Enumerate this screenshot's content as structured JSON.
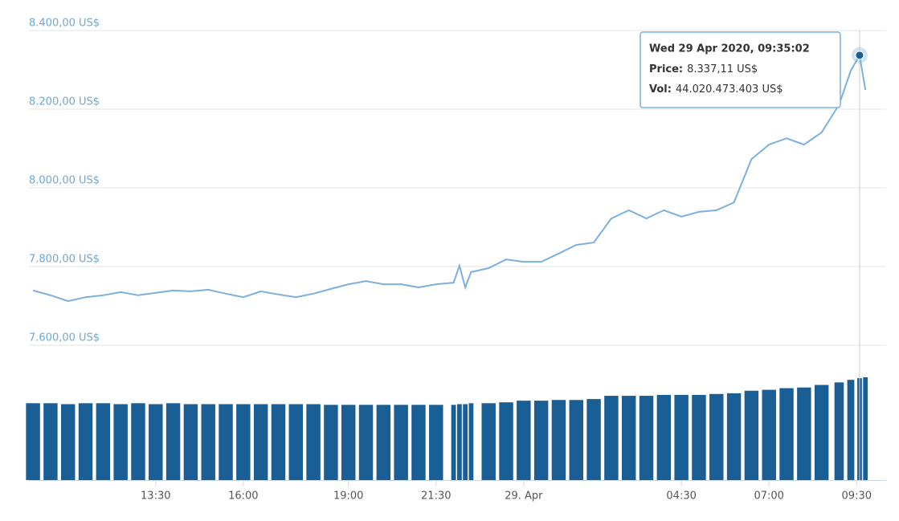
{
  "chart_data": {
    "type": "line",
    "x": [
      "2020-04-28T10:00",
      "2020-04-28T10:30",
      "2020-04-28T11:00",
      "2020-04-28T11:30",
      "2020-04-28T12:00",
      "2020-04-28T12:30",
      "2020-04-28T13:00",
      "2020-04-28T13:30",
      "2020-04-28T14:00",
      "2020-04-28T14:30",
      "2020-04-28T15:00",
      "2020-04-28T15:30",
      "2020-04-28T16:00",
      "2020-04-28T16:30",
      "2020-04-28T17:00",
      "2020-04-28T17:30",
      "2020-04-28T18:00",
      "2020-04-28T18:30",
      "2020-04-28T19:00",
      "2020-04-28T19:30",
      "2020-04-28T20:00",
      "2020-04-28T20:30",
      "2020-04-28T21:00",
      "2020-04-28T21:30",
      "2020-04-28T22:00",
      "2020-04-28T22:10",
      "2020-04-28T22:20",
      "2020-04-28T22:30",
      "2020-04-28T23:00",
      "2020-04-28T23:30",
      "2020-04-29T00:00",
      "2020-04-29T00:30",
      "2020-04-29T01:00",
      "2020-04-29T01:30",
      "2020-04-29T02:00",
      "2020-04-29T02:30",
      "2020-04-29T03:00",
      "2020-04-29T03:30",
      "2020-04-29T04:00",
      "2020-04-29T04:30",
      "2020-04-29T05:00",
      "2020-04-29T05:30",
      "2020-04-29T06:00",
      "2020-04-29T06:30",
      "2020-04-29T07:00",
      "2020-04-29T07:30",
      "2020-04-29T08:00",
      "2020-04-29T08:30",
      "2020-04-29T09:00",
      "2020-04-29T09:20",
      "2020-04-29T09:35:02",
      "2020-04-29T09:45"
    ],
    "series": [
      {
        "name": "Price",
        "color": "#7cb0dc",
        "values": [
          7739,
          7727,
          7712,
          7722,
          7727,
          7735,
          7727,
          7733,
          7739,
          7737,
          7741,
          7731,
          7722,
          7737,
          7729,
          7722,
          7731,
          7743,
          7755,
          7763,
          7755,
          7755,
          7747,
          7755,
          7759,
          7802,
          7747,
          7786,
          7796,
          7818,
          7812,
          7812,
          7833,
          7855,
          7861,
          7922,
          7943,
          7922,
          7943,
          7927,
          7939,
          7943,
          7963,
          8073,
          8110,
          8126,
          8110,
          8141,
          8212,
          8298,
          8337.11,
          8249
        ]
      },
      {
        "name": "Vol",
        "color": "#1a5e96",
        "values": [
          33200000000,
          33200000000,
          32800000000,
          33200000000,
          33200000000,
          32800000000,
          33200000000,
          32800000000,
          33200000000,
          32800000000,
          32800000000,
          32800000000,
          32800000000,
          32800000000,
          32800000000,
          32800000000,
          32800000000,
          32500000000,
          32500000000,
          32500000000,
          32500000000,
          32500000000,
          32500000000,
          32500000000,
          32500000000,
          32800000000,
          32800000000,
          33200000000,
          33200000000,
          33600000000,
          34300000000,
          34300000000,
          34600000000,
          34600000000,
          35000000000,
          36400000000,
          36400000000,
          36400000000,
          36800000000,
          36800000000,
          36800000000,
          37200000000,
          37500000000,
          38600000000,
          39000000000,
          39700000000,
          40000000000,
          41100000000,
          42200000000,
          43300000000,
          44020473403,
          44400000000
        ]
      }
    ],
    "xlim": [
      "2020-04-28T09:53",
      "2020-04-29T09:53"
    ],
    "xticks": [
      {
        "value": "2020-04-28T13:30",
        "label": "13:30"
      },
      {
        "value": "2020-04-28T16:00",
        "label": "16:00"
      },
      {
        "value": "2020-04-28T19:00",
        "label": "19:00"
      },
      {
        "value": "2020-04-28T21:30",
        "label": "21:30"
      },
      {
        "value": "2020-04-29T00:00",
        "label": "29. Apr"
      },
      {
        "value": "2020-04-29T04:30",
        "label": "04:30"
      },
      {
        "value": "2020-04-29T07:00",
        "label": "07:00"
      },
      {
        "value": "2020-04-29T09:30",
        "label": "09:30"
      }
    ],
    "ylim": [
      7600,
      8400
    ],
    "yticks": [
      {
        "value": 7600,
        "label": "7.600,00 US$"
      },
      {
        "value": 7800,
        "label": "7.800,00 US$"
      },
      {
        "value": 8000,
        "label": "8.000,00 US$"
      },
      {
        "value": 8200,
        "label": "8.200,00 US$"
      },
      {
        "value": 8400,
        "label": "8.400,00 US$"
      }
    ],
    "grid": true,
    "tooltip": {
      "date": "Wed 29 Apr 2020, 09:35:02",
      "price_label": "Price:",
      "price": "8.337,11 US$",
      "vol_label": "Vol:",
      "vol": "44.020.473.403 US$"
    }
  }
}
